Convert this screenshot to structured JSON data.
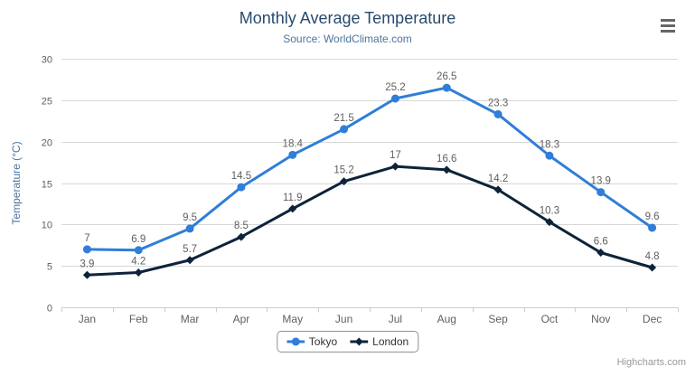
{
  "header": {
    "title": "Monthly Average Temperature",
    "subtitle": "Source: WorldClimate.com"
  },
  "credits": {
    "label": "Highcharts.com"
  },
  "menu_icon": "hamburger-icon",
  "colors": {
    "title": "#274b6d",
    "subtitle": "#4d759e",
    "y_axis_title": "#4d759e",
    "axis_label": "#606060",
    "data_label": "#606060",
    "grid_line": "#d8d8d8",
    "axis_line": "#c0d0e0",
    "legend_border": "#909090",
    "legend_text": "#333333",
    "credits": "#999999",
    "menu_icon": "#666666",
    "series_tokyo": "#2f7ed8",
    "series_london": "#0d233a"
  },
  "chart_data": {
    "type": "line",
    "title": "Monthly Average Temperature",
    "subtitle": "Source: WorldClimate.com",
    "categories": [
      "Jan",
      "Feb",
      "Mar",
      "Apr",
      "May",
      "Jun",
      "Jul",
      "Aug",
      "Sep",
      "Oct",
      "Nov",
      "Dec"
    ],
    "series": [
      {
        "name": "Tokyo",
        "color": "#2f7ed8",
        "marker": "circle",
        "values": [
          7,
          6.9,
          9.5,
          14.5,
          18.4,
          21.5,
          25.2,
          26.5,
          23.3,
          18.3,
          13.9,
          9.6
        ]
      },
      {
        "name": "London",
        "color": "#0d233a",
        "marker": "diamond",
        "values": [
          3.9,
          4.2,
          5.7,
          8.5,
          11.9,
          15.2,
          17,
          16.6,
          14.2,
          10.3,
          6.6,
          4.8
        ]
      }
    ],
    "xlabel": "",
    "ylabel": "Temperature (°C)",
    "ylim": [
      0,
      30
    ],
    "ytick_step": 5,
    "grid": true,
    "data_labels": true,
    "legend_position": "bottom-center"
  }
}
